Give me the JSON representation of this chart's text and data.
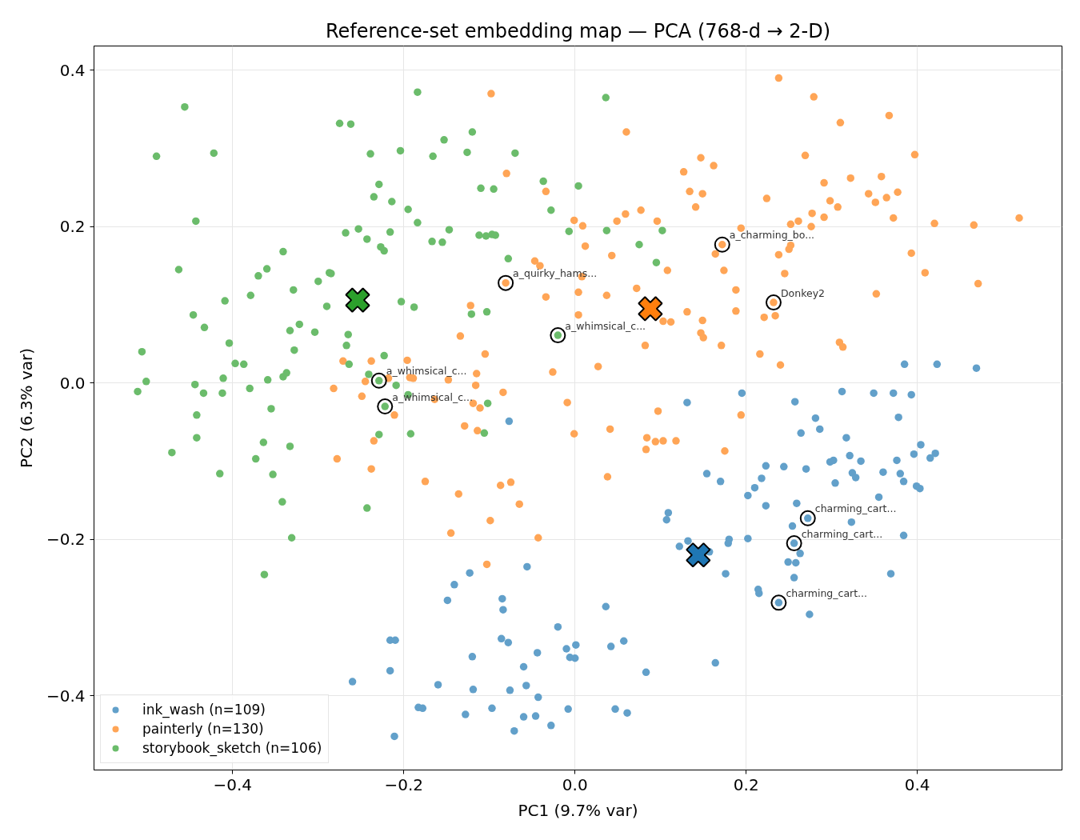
{
  "chart_data": {
    "type": "scatter",
    "title": "Reference-set embedding map — PCA (768-d → 2-D)",
    "xlabel": "PC1 (9.7% var)",
    "ylabel": "PC2 (6.3% var)",
    "xlim": [
      -0.562,
      0.569
    ],
    "ylim": [
      -0.495,
      0.431
    ],
    "xticks": [
      {
        "value": -0.4,
        "label": "−0.4"
      },
      {
        "value": -0.2,
        "label": "−0.2"
      },
      {
        "value": 0,
        "label": "0.0"
      },
      0.2,
      0.4
    ],
    "yticks": [
      {
        "value": -0.4,
        "label": "−0.4"
      },
      {
        "value": -0.2,
        "label": "−0.2"
      },
      {
        "value": 0,
        "label": "0.0"
      },
      0.2,
      0.4
    ],
    "grid": true,
    "legend": "bottom left",
    "marker": "circle",
    "series": [
      {
        "name": "ink_wash (n=109)",
        "color": "#62a0ca",
        "x": [
          0.385,
          0.423,
          0.469,
          0.195,
          0.312,
          0.349,
          0.372,
          0.393,
          -0.216,
          -0.21,
          -0.216,
          -0.26,
          -0.211,
          0.131,
          -0.077,
          0.154,
          0.17,
          0.109,
          0.107,
          0.132,
          0.122,
          0.157,
          0.18,
          0.179,
          0.176,
          -0.056,
          -0.123,
          -0.141,
          -0.149,
          -0.085,
          -0.084,
          0.036,
          -0.02,
          -0.086,
          -0.078,
          0.057,
          0.042,
          0.001,
          -0.01,
          -0.006,
          0.0,
          -0.044,
          -0.12,
          0.164,
          -0.06,
          0.083,
          -0.16,
          -0.119,
          -0.076,
          -0.057,
          -0.043,
          -0.183,
          -0.178,
          -0.128,
          -0.097,
          -0.06,
          -0.046,
          -0.008,
          0.047,
          0.061,
          -0.028,
          -0.071,
          0.257,
          0.281,
          0.378,
          0.264,
          0.286,
          0.317,
          0.404,
          0.396,
          0.421,
          0.415,
          0.223,
          0.244,
          0.27,
          0.298,
          0.302,
          0.321,
          0.334,
          0.376,
          0.218,
          0.21,
          0.202,
          0.324,
          0.328,
          0.36,
          0.38,
          0.384,
          0.304,
          0.399,
          0.403,
          0.355,
          0.223,
          0.259,
          0.272,
          0.254,
          0.323,
          0.202,
          0.256,
          0.384,
          0.263,
          0.249,
          0.258,
          0.369,
          0.256,
          0.214,
          0.215,
          0.238,
          0.274
        ],
        "values": [
          0.024,
          0.024,
          0.019,
          -0.013,
          -0.011,
          -0.013,
          -0.013,
          -0.015,
          -0.329,
          -0.329,
          -0.368,
          -0.382,
          -0.452,
          -0.025,
          -0.049,
          -0.116,
          -0.126,
          -0.166,
          -0.175,
          -0.202,
          -0.209,
          -0.216,
          -0.2,
          -0.205,
          -0.244,
          -0.235,
          -0.243,
          -0.258,
          -0.278,
          -0.276,
          -0.29,
          -0.286,
          -0.312,
          -0.327,
          -0.332,
          -0.33,
          -0.337,
          -0.335,
          -0.34,
          -0.351,
          -0.352,
          -0.345,
          -0.35,
          -0.358,
          -0.363,
          -0.37,
          -0.386,
          -0.392,
          -0.393,
          -0.387,
          -0.402,
          -0.415,
          -0.416,
          -0.424,
          -0.416,
          -0.427,
          -0.426,
          -0.417,
          -0.417,
          -0.422,
          -0.438,
          -0.445,
          -0.024,
          -0.045,
          -0.044,
          -0.064,
          -0.059,
          -0.07,
          -0.079,
          -0.091,
          -0.09,
          -0.096,
          -0.106,
          -0.107,
          -0.11,
          -0.101,
          -0.099,
          -0.093,
          -0.1,
          -0.099,
          -0.122,
          -0.134,
          -0.144,
          -0.115,
          -0.121,
          -0.114,
          -0.116,
          -0.126,
          -0.128,
          -0.132,
          -0.135,
          -0.146,
          -0.157,
          -0.154,
          -0.173,
          -0.183,
          -0.178,
          -0.199,
          -0.205,
          -0.195,
          -0.218,
          -0.229,
          -0.23,
          -0.244,
          -0.249,
          -0.264,
          -0.269,
          -0.281,
          -0.296
        ]
      },
      {
        "name": "painterly (n=130)",
        "color": "#ffa556",
        "x": [
          -0.271,
          -0.238,
          -0.196,
          -0.245,
          -0.218,
          -0.193,
          -0.189,
          -0.282,
          -0.249,
          -0.098,
          0.06,
          0.147,
          0.162,
          0.127,
          -0.08,
          -0.034,
          0.134,
          0.149,
          0.141,
          0.077,
          0.059,
          0.049,
          -0.001,
          0.009,
          0.096,
          0.012,
          0.043,
          0.172,
          0.164,
          0.174,
          -0.047,
          -0.041,
          0.108,
          -0.081,
          0.008,
          0.072,
          0.004,
          -0.034,
          0.037,
          -0.122,
          0.004,
          0.131,
          0.103,
          0.112,
          0.149,
          0.147,
          0.15,
          -0.134,
          0.082,
          0.171,
          -0.105,
          0.027,
          -0.026,
          -0.115,
          -0.148,
          -0.116,
          -0.084,
          -0.164,
          0.238,
          0.279,
          0.367,
          0.31,
          0.269,
          0.397,
          0.322,
          0.358,
          0.291,
          0.343,
          0.377,
          0.364,
          0.351,
          0.224,
          0.298,
          0.307,
          0.277,
          0.291,
          0.372,
          0.519,
          0.42,
          0.466,
          0.252,
          0.261,
          0.276,
          0.194,
          0.252,
          0.25,
          0.238,
          0.393,
          0.245,
          0.409,
          0.471,
          0.188,
          0.352,
          0.232,
          0.188,
          0.221,
          0.234,
          0.309,
          0.313,
          0.216,
          0.24,
          -0.211,
          -0.235,
          -0.278,
          -0.238,
          -0.119,
          -0.111,
          -0.009,
          0.097,
          -0.129,
          -0.114,
          -0.001,
          0.041,
          0.084,
          0.094,
          0.103,
          0.118,
          0.083,
          0.175,
          -0.175,
          -0.087,
          -0.075,
          -0.136,
          -0.065,
          0.038,
          -0.099,
          -0.145,
          -0.043,
          -0.103,
          0.194
        ],
        "values": [
          0.028,
          0.028,
          0.029,
          0.002,
          0.006,
          0.007,
          0.006,
          -0.007,
          -0.017,
          0.37,
          0.321,
          0.288,
          0.278,
          0.27,
          0.268,
          0.245,
          0.245,
          0.242,
          0.225,
          0.221,
          0.216,
          0.207,
          0.208,
          0.201,
          0.207,
          0.175,
          0.163,
          0.177,
          0.165,
          0.144,
          0.156,
          0.15,
          0.144,
          0.128,
          0.136,
          0.121,
          0.116,
          0.11,
          0.112,
          0.099,
          0.087,
          0.091,
          0.079,
          0.078,
          0.08,
          0.064,
          0.058,
          0.06,
          0.048,
          0.048,
          0.037,
          0.021,
          0.014,
          0.012,
          0.004,
          -0.003,
          -0.012,
          -0.021,
          0.39,
          0.366,
          0.342,
          0.333,
          0.291,
          0.292,
          0.262,
          0.264,
          0.256,
          0.242,
          0.244,
          0.237,
          0.231,
          0.236,
          0.233,
          0.225,
          0.217,
          0.212,
          0.211,
          0.211,
          0.204,
          0.202,
          0.203,
          0.207,
          0.2,
          0.198,
          0.176,
          0.171,
          0.164,
          0.166,
          0.14,
          0.141,
          0.127,
          0.119,
          0.114,
          0.103,
          0.092,
          0.084,
          0.086,
          0.052,
          0.046,
          0.037,
          0.023,
          -0.041,
          -0.074,
          -0.097,
          -0.11,
          -0.026,
          -0.032,
          -0.025,
          -0.036,
          -0.055,
          -0.061,
          -0.065,
          -0.059,
          -0.07,
          -0.075,
          -0.074,
          -0.074,
          -0.085,
          -0.087,
          -0.126,
          -0.131,
          -0.127,
          -0.142,
          -0.155,
          -0.12,
          -0.176,
          -0.192,
          -0.198,
          -0.232,
          -0.041
        ]
      },
      {
        "name": "storybook_sketch (n=106)",
        "color": "#6bbc6b",
        "x": [
          -0.456,
          -0.275,
          -0.262,
          -0.489,
          -0.422,
          -0.239,
          -0.204,
          -0.229,
          -0.235,
          -0.214,
          -0.195,
          -0.443,
          -0.268,
          -0.253,
          -0.243,
          -0.216,
          -0.227,
          -0.223,
          -0.341,
          -0.463,
          -0.37,
          -0.36,
          -0.287,
          -0.285,
          -0.3,
          -0.329,
          -0.379,
          -0.409,
          -0.29,
          -0.203,
          -0.188,
          -0.446,
          -0.433,
          -0.333,
          -0.322,
          -0.304,
          -0.265,
          -0.404,
          -0.267,
          -0.328,
          -0.506,
          -0.223,
          -0.397,
          -0.387,
          -0.264,
          -0.501,
          -0.411,
          -0.359,
          -0.341,
          -0.337,
          -0.241,
          -0.229,
          -0.209,
          -0.444,
          -0.511,
          -0.434,
          -0.412,
          -0.38,
          -0.195,
          -0.184,
          0.036,
          -0.12,
          -0.153,
          -0.166,
          -0.126,
          -0.07,
          -0.037,
          0.004,
          -0.11,
          -0.095,
          -0.028,
          -0.184,
          -0.147,
          -0.007,
          0.037,
          0.102,
          -0.167,
          -0.155,
          -0.112,
          -0.104,
          -0.097,
          -0.093,
          0.075,
          -0.078,
          0.095,
          -0.121,
          -0.103,
          -0.02,
          -0.222,
          -0.355,
          -0.442,
          -0.442,
          -0.471,
          -0.364,
          -0.333,
          -0.373,
          -0.415,
          -0.353,
          -0.342,
          -0.243,
          -0.331,
          -0.363,
          -0.229,
          -0.192,
          -0.102,
          -0.106
        ],
        "values": [
          0.353,
          0.332,
          0.331,
          0.29,
          0.294,
          0.293,
          0.297,
          0.254,
          0.238,
          0.232,
          0.222,
          0.207,
          0.192,
          0.197,
          0.184,
          0.193,
          0.174,
          0.169,
          0.168,
          0.145,
          0.137,
          0.146,
          0.141,
          0.14,
          0.13,
          0.119,
          0.112,
          0.105,
          0.098,
          0.104,
          0.097,
          0.087,
          0.071,
          0.067,
          0.075,
          0.065,
          0.062,
          0.051,
          0.048,
          0.042,
          0.04,
          0.035,
          0.025,
          0.024,
          0.024,
          0.002,
          0.006,
          0.004,
          0.008,
          0.013,
          0.011,
          0.003,
          -0.003,
          -0.002,
          -0.011,
          -0.013,
          -0.013,
          -0.007,
          -0.015,
          0.372,
          0.365,
          0.321,
          0.311,
          0.29,
          0.295,
          0.294,
          0.258,
          0.252,
          0.249,
          0.248,
          0.221,
          0.205,
          0.196,
          0.194,
          0.195,
          0.195,
          0.181,
          0.18,
          0.189,
          0.188,
          0.19,
          0.189,
          0.177,
          0.159,
          0.154,
          0.088,
          0.091,
          0.061,
          -0.03,
          -0.033,
          -0.041,
          -0.07,
          -0.089,
          -0.076,
          -0.081,
          -0.097,
          -0.116,
          -0.117,
          -0.152,
          -0.16,
          -0.198,
          -0.245,
          -0.066,
          -0.065,
          -0.026,
          -0.064
        ]
      },
      {
        "type": "scatter",
        "marker": "cross",
        "x": [
          0.144,
          0.088,
          -0.254
        ],
        "values": [
          -0.22,
          0.095,
          0.106
        ],
        "colors": [
          "#1f77b4",
          "#ff7f0e",
          "#2ca02c"
        ]
      }
    ],
    "annotations": [
      {
        "text": "a_charming_bo...",
        "x": 0.172,
        "y": 0.177
      },
      {
        "text": "a_quirky_hams...",
        "x": -0.081,
        "y": 0.128
      },
      {
        "text": "Donkey2",
        "x": 0.232,
        "y": 0.103
      },
      {
        "text": "a_whimsical_c...",
        "x": -0.02,
        "y": 0.061
      },
      {
        "text": "a_whimsical_c...",
        "x": -0.229,
        "y": 0.003
      },
      {
        "text": "a_whimsical_c...",
        "x": -0.222,
        "y": -0.03
      },
      {
        "text": "charming_cart...",
        "x": 0.272,
        "y": -0.173
      },
      {
        "text": "charming_cart...",
        "x": 0.256,
        "y": -0.205
      },
      {
        "text": "charming_cart...",
        "x": 0.238,
        "y": -0.281
      }
    ]
  }
}
